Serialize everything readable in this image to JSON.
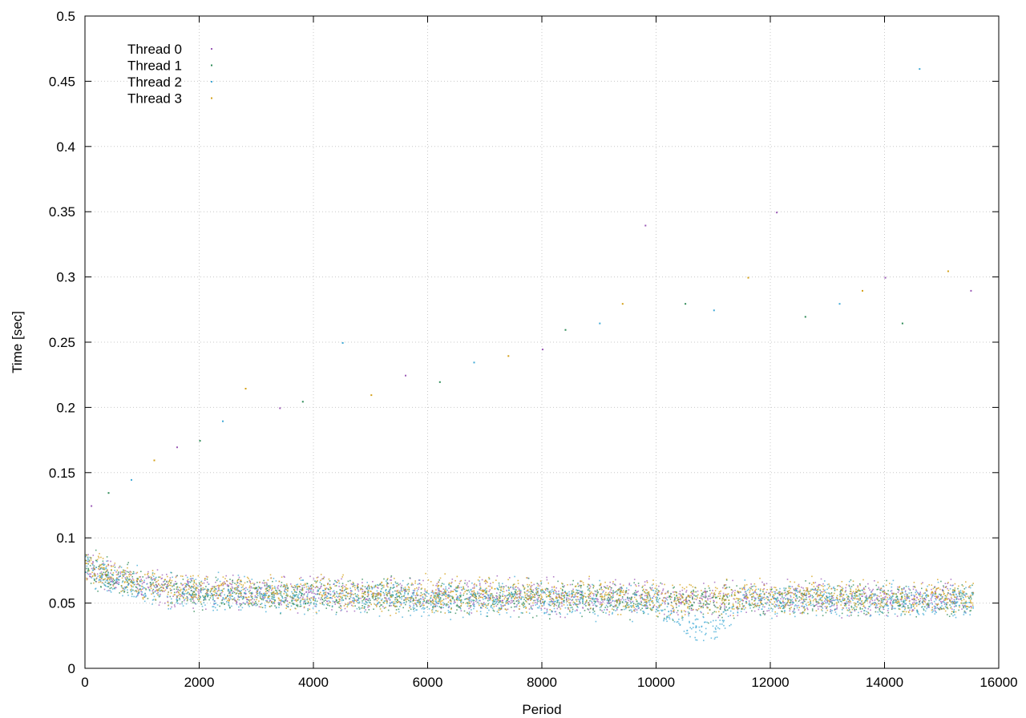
{
  "chart_data": {
    "type": "scatter",
    "title": "",
    "xlabel": "Period",
    "ylabel": "Time [sec]",
    "xlim": [
      0,
      16000
    ],
    "ylim": [
      0,
      0.5
    ],
    "xticks": [
      0,
      2000,
      4000,
      6000,
      8000,
      10000,
      12000,
      14000,
      16000
    ],
    "xtick_labels": [
      "0",
      "2000",
      "4000",
      "6000",
      "8000",
      "10000",
      "12000",
      "14000",
      "16000"
    ],
    "yticks": [
      0,
      0.05,
      0.1,
      0.15,
      0.2,
      0.25,
      0.3,
      0.35,
      0.4,
      0.45,
      0.5
    ],
    "ytick_labels": [
      "0",
      "0.05",
      "0.1",
      "0.15",
      "0.2",
      "0.25",
      "0.3",
      "0.35",
      "0.4",
      "0.45",
      "0.5"
    ],
    "grid": true,
    "legend_position": "top-left",
    "series": [
      {
        "name": "Thread 0",
        "color": "#9b59b6",
        "x": [
          0,
          500,
          1000,
          1500,
          2000,
          3000,
          4000,
          5000,
          6000,
          7000,
          8000,
          9000,
          10000,
          11000,
          12000,
          13000,
          14000,
          15000,
          15550
        ],
        "y": [
          0.08,
          0.07,
          0.064,
          0.061,
          0.059,
          0.058,
          0.057,
          0.057,
          0.056,
          0.056,
          0.055,
          0.055,
          0.054,
          0.053,
          0.055,
          0.055,
          0.054,
          0.054,
          0.054
        ]
      },
      {
        "name": "Thread 1",
        "color": "#2e8b57",
        "x": [
          0,
          500,
          1000,
          1500,
          2000,
          3000,
          4000,
          5000,
          6000,
          7000,
          8000,
          9000,
          10000,
          11000,
          12000,
          13000,
          14000,
          15000,
          15550
        ],
        "y": [
          0.079,
          0.069,
          0.063,
          0.06,
          0.058,
          0.057,
          0.056,
          0.056,
          0.055,
          0.055,
          0.054,
          0.054,
          0.053,
          0.052,
          0.054,
          0.054,
          0.053,
          0.053,
          0.053
        ]
      },
      {
        "name": "Thread 2",
        "color": "#3fa9d6",
        "x": [
          0,
          500,
          1000,
          1500,
          2000,
          3000,
          4000,
          5000,
          6000,
          7000,
          8000,
          9000,
          10000,
          10500,
          11000,
          11500,
          12000,
          13000,
          14000,
          15000,
          15550
        ],
        "y": [
          0.078,
          0.068,
          0.062,
          0.059,
          0.057,
          0.056,
          0.055,
          0.055,
          0.054,
          0.054,
          0.053,
          0.053,
          0.05,
          0.034,
          0.03,
          0.052,
          0.053,
          0.053,
          0.052,
          0.052,
          0.052
        ]
      },
      {
        "name": "Thread 3",
        "color": "#d4a017",
        "x": [
          0,
          500,
          1000,
          1500,
          2000,
          3000,
          4000,
          5000,
          6000,
          7000,
          8000,
          9000,
          10000,
          11000,
          12000,
          13000,
          14000,
          15000,
          15550
        ],
        "y": [
          0.081,
          0.071,
          0.065,
          0.062,
          0.06,
          0.059,
          0.058,
          0.058,
          0.057,
          0.057,
          0.056,
          0.056,
          0.055,
          0.054,
          0.056,
          0.056,
          0.055,
          0.055,
          0.055
        ]
      }
    ],
    "outliers": {
      "x": [
        100,
        400,
        800,
        1200,
        1600,
        2000,
        2400,
        2800,
        3400,
        3800,
        4500,
        5000,
        5600,
        6200,
        6800,
        7400,
        8000,
        8400,
        9000,
        9400,
        9800,
        10500,
        11000,
        11600,
        12100,
        12600,
        13200,
        13600,
        14000,
        14300,
        14600,
        15100,
        15500
      ],
      "y": [
        0.125,
        0.135,
        0.145,
        0.16,
        0.17,
        0.175,
        0.19,
        0.215,
        0.2,
        0.205,
        0.25,
        0.21,
        0.225,
        0.22,
        0.235,
        0.24,
        0.245,
        0.26,
        0.265,
        0.28,
        0.34,
        0.28,
        0.275,
        0.3,
        0.35,
        0.27,
        0.28,
        0.29,
        0.3,
        0.265,
        0.46,
        0.305,
        0.29
      ]
    },
    "noise_spread": 0.018
  }
}
